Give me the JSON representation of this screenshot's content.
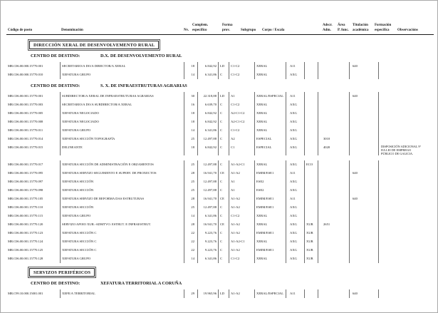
{
  "document": {
    "header": {
      "codigo": "Código de posto",
      "denominacion": "Denominación",
      "complem_l1": "Complem.",
      "nv": "Nv.",
      "especifico": "específico",
      "forma_l1": "Forma",
      "forma_l2": "prov.",
      "subgrupo": "Subgrupo",
      "corpo": "Corpo / Escala",
      "adscr_l1": "Adscr.",
      "adscr_l2": "Adm.",
      "area_l1": "Área",
      "area_l2": "P. func.",
      "titulacion_l1": "Titulación",
      "titulacion_l2": "académica",
      "formacion_l1": "Formación",
      "formacion_l2": "específica",
      "observacions": "Observacións"
    },
    "sections": [
      {
        "box_title": "DIRECCIÓN XERAL DE DESENVOLVEMENTO RURAL",
        "groups": [
          {
            "centro_label": "CENTRO DE DESTINO:",
            "centro_value": "D.X. DE DESENVOLVEMENTO RURAL",
            "rows": [
              {
                "codigo": "MR.C06.00.000.15770.001",
                "denominacion": "SECRETARIO/A DO/A DIRECTOR/A XERAL",
                "nv": "18",
                "especifico": "6.842,92",
                "forma": "LD",
                "subgrupo": "C1-C2",
                "corpo": "XERAL",
                "adscr": "A11",
                "area": "",
                "titulacion": "",
                "formacion": "640",
                "observacions": ""
              },
              {
                "codigo": "MR.C06.00.000.15770.010",
                "denominacion": "XEFATURA GRUPO",
                "nv": "14",
                "especifico": "6.341,86",
                "forma": "C",
                "subgrupo": "C1-C2",
                "corpo": "XERAL",
                "adscr": "AXG",
                "area": "",
                "titulacion": "",
                "formacion": "",
                "observacions": ""
              }
            ]
          },
          {
            "centro_label": "CENTRO DE DESTINO:",
            "centro_value": "S. X. DE INFRAESTRUTURAS AGRARIAS",
            "rows": [
              {
                "codigo": "MR.C06.00.001.15770.001",
                "denominacion": "SUBDIRECTOR/A XERAL DE INFRAESTRUTURAS AGRARIAS",
                "nv": "30",
                "especifico": "22.318,88",
                "forma": "LD",
                "subgrupo": "A1",
                "corpo": "XERAL/ESPECIAL",
                "adscr": "A11",
                "area": "",
                "titulacion": "",
                "formacion": "640",
                "observacions": ""
              },
              {
                "codigo": "MR.C06.00.001.15770.003",
                "denominacion": "SECRETARIO/A DO/A SUBDIRECTOR/A XERAL",
                "nv": "16",
                "especifico": "6.639,70",
                "forma": "C",
                "subgrupo": "C1-C2",
                "corpo": "XERAL",
                "adscr": "AXG",
                "area": "",
                "titulacion": "",
                "formacion": "",
                "observacions": ""
              },
              {
                "codigo": "MR.C06.00.001.15770.005",
                "denominacion": "XEFATURA NEGOCIADO",
                "nv": "18",
                "especifico": "6.842,92",
                "forma": "C",
                "subgrupo": "A2-C1-C2",
                "corpo": "XERAL",
                "adscr": "AXG",
                "area": "",
                "titulacion": "",
                "formacion": "",
                "observacions": ""
              },
              {
                "codigo": "MR.C06.00.001.15770.008",
                "denominacion": "XEFATURA NEGOCIADO",
                "nv": "18",
                "especifico": "6.842,92",
                "forma": "C",
                "subgrupo": "A2-C1-C2",
                "corpo": "XERAL",
                "adscr": "AXG",
                "area": "",
                "titulacion": "",
                "formacion": "",
                "observacions": ""
              },
              {
                "codigo": "MR.C06.00.001.15770.011",
                "denominacion": "XEFATURA GRUPO",
                "nv": "14",
                "especifico": "6.341,86",
                "forma": "C",
                "subgrupo": "C1-C2",
                "corpo": "XERAL",
                "adscr": "AXG",
                "area": "",
                "titulacion": "",
                "formacion": "",
                "observacions": ""
              },
              {
                "codigo": "MR.C06.00.001.15770.014",
                "denominacion": "XEFATURA SECCIÓN TOPOGRAFÍA",
                "nv": "25",
                "especifico": "12.497,88",
                "forma": "C",
                "subgrupo": "A2",
                "corpo": "ESPECIAL",
                "adscr": "AXG",
                "area": "",
                "titulacion": "3010",
                "formacion": "",
                "observacions": ""
              },
              {
                "codigo": "MR.C06.00.001.15770.015",
                "denominacion": "DELINEANTE",
                "nv": "18",
                "especifico": "6.842,92",
                "forma": "C",
                "subgrupo": "C1",
                "corpo": "ESPECIAL",
                "adscr": "AXG",
                "area": "",
                "titulacion": "4020",
                "formacion": "",
                "observacions": "DISPOSICIÓN ADICIONAL 9ª DA LEI DE EMPREGO PÚBLICO DE GALICIA."
              },
              {
                "codigo": "MR.C06.00.001.15770.017",
                "denominacion": "XEFATURA SECCIÓN DE ADMINISTRACIÓN E ORZAMENTOS",
                "nv": "25",
                "especifico": "12.497,88",
                "forma": "C",
                "subgrupo": "A1-A2-C1",
                "corpo": "XERAL",
                "adscr": "AXG",
                "area": "ECO",
                "titulacion": "",
                "formacion": "",
                "observacions": "",
                "gap_before": true
              },
              {
                "codigo": "MR.C06.00.001.15770.095",
                "denominacion": "XEFATURA SERVIZO SEGUIMENTO E SUPERV. DE PROXECTOS",
                "nv": "28",
                "especifico": "16.941,70",
                "forma": "CE",
                "subgrupo": "A1-A2",
                "corpo": "EMIM/ESE1",
                "adscr": "A11",
                "area": "",
                "titulacion": "",
                "formacion": "640",
                "observacions": ""
              },
              {
                "codigo": "MR.C06.00.001.15770.097",
                "denominacion": "XEFATURA SECCIÓN",
                "nv": "25",
                "especifico": "12.497,88",
                "forma": "C",
                "subgrupo": "A1",
                "corpo": "ESE2",
                "adscr": "AXG",
                "area": "",
                "titulacion": "",
                "formacion": "",
                "observacions": ""
              },
              {
                "codigo": "MR.C06.00.001.15770.098",
                "denominacion": "XEFATURA SECCIÓN",
                "nv": "25",
                "especifico": "12.497,88",
                "forma": "C",
                "subgrupo": "A1",
                "corpo": "ESE2",
                "adscr": "AXG",
                "area": "",
                "titulacion": "",
                "formacion": "",
                "observacions": ""
              },
              {
                "codigo": "MR.C06.00.001.15770.105",
                "denominacion": "XEFATURA SERVIZO DE REFORMA DAS ESTRUTURAS",
                "nv": "28",
                "especifico": "16.941,70",
                "forma": "CE",
                "subgrupo": "A1-A2",
                "corpo": "EMIM/ESE1",
                "adscr": "A11",
                "area": "",
                "titulacion": "",
                "formacion": "640",
                "observacions": ""
              },
              {
                "codigo": "MR.C06.00.001.15770.110",
                "denominacion": "XEFATURA SECCIÓN",
                "nv": "25",
                "especifico": "12.497,88",
                "forma": "C",
                "subgrupo": "A1-A2",
                "corpo": "EMIM/ESE1",
                "adscr": "AXG",
                "area": "",
                "titulacion": "",
                "formacion": "",
                "observacions": ""
              },
              {
                "codigo": "MR.C06.00.001.15770.115",
                "denominacion": "XEFATURA GRUPO",
                "nv": "14",
                "especifico": "6.341,86",
                "forma": "C",
                "subgrupo": "C1-C2",
                "corpo": "XERAL",
                "adscr": "AXG",
                "area": "",
                "titulacion": "",
                "formacion": "",
                "observacions": ""
              },
              {
                "codigo": "MR.C06.00.001.15770.120",
                "denominacion": "SERVIZO APOIO XUR.-ADMTVO. ESTRUT. E INFRAESTRUT.",
                "nv": "28",
                "especifico": "16.941,70",
                "forma": "CE",
                "subgrupo": "A1-A2",
                "corpo": "XERAL",
                "adscr": "AXG",
                "area": "XUR",
                "titulacion": "2651",
                "formacion": "",
                "observacions": ""
              },
              {
                "codigo": "MR.C06.00.001.15770.123",
                "denominacion": "XEFATURA SECCIÓN C",
                "nv": "22",
                "especifico": "9.223,76",
                "forma": "C",
                "subgrupo": "A1-A2",
                "corpo": "EMIM/ESE1",
                "adscr": "AXG",
                "area": "XUR",
                "titulacion": "",
                "formacion": "",
                "observacions": ""
              },
              {
                "codigo": "MR.C06.00.001.15770.124",
                "denominacion": "XEFATURA SECCIÓN C",
                "nv": "22",
                "especifico": "9.223,76",
                "forma": "C",
                "subgrupo": "A1-A2-C1",
                "corpo": "XERAL",
                "adscr": "AXG",
                "area": "XUR",
                "titulacion": "",
                "formacion": "",
                "observacions": ""
              },
              {
                "codigo": "MR.C06.00.001.15770.125",
                "denominacion": "XEFATURA SECCIÓN C",
                "nv": "22",
                "especifico": "9.223,76",
                "forma": "C",
                "subgrupo": "A1-A2",
                "corpo": "EMIM/ESE1",
                "adscr": "AXG",
                "area": "XUR",
                "titulacion": "",
                "formacion": "",
                "observacions": ""
              },
              {
                "codigo": "MR.C06.00.001.15770.128",
                "denominacion": "XEFATURA GRUPO",
                "nv": "14",
                "especifico": "6.341,86",
                "forma": "C",
                "subgrupo": "C1-C2",
                "corpo": "XERAL",
                "adscr": "AXG",
                "area": "XUR",
                "titulacion": "",
                "formacion": "",
                "observacions": ""
              }
            ]
          }
        ]
      },
      {
        "box_title": "SERVIZOS PERIFÉRICOS",
        "groups": [
          {
            "centro_label": "CENTRO DE DESTINO:",
            "centro_value": "XEFATURA TERRITORIAL A CORUÑA",
            "rows": [
              {
                "codigo": "MR.C99.10.000.15001.001",
                "denominacion": "XEFE/A TERRITORIAL",
                "nv": "29",
                "especifico": "19.965,96",
                "forma": "LD",
                "subgrupo": "A1-A2",
                "corpo": "XERAL/ESPECIAL",
                "adscr": "A11",
                "area": "",
                "titulacion": "",
                "formacion": "640",
                "observacions": ""
              }
            ]
          }
        ]
      }
    ]
  }
}
